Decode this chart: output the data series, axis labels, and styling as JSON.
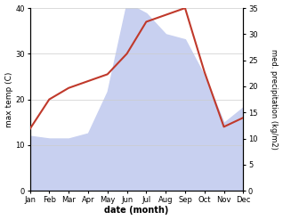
{
  "months": [
    "Jan",
    "Feb",
    "Mar",
    "Apr",
    "May",
    "Jun",
    "Jul",
    "Aug",
    "Sep",
    "Oct",
    "Nov",
    "Dec"
  ],
  "x": [
    0,
    1,
    2,
    3,
    4,
    5,
    6,
    7,
    8,
    9,
    10,
    11
  ],
  "temp": [
    13.5,
    20.0,
    22.5,
    24.0,
    25.5,
    30.0,
    37.0,
    38.5,
    40.0,
    26.0,
    14.0,
    16.0
  ],
  "precip": [
    10.5,
    10.0,
    10.0,
    11.0,
    19.0,
    36.0,
    34.0,
    30.0,
    29.0,
    22.0,
    13.0,
    16.0
  ],
  "temp_color": "#c0392b",
  "precip_fill_color": "#c8d0f0",
  "left_ylim": [
    0,
    40
  ],
  "right_ylim": [
    0,
    35
  ],
  "left_yticks": [
    0,
    10,
    20,
    30,
    40
  ],
  "right_yticks": [
    0,
    5,
    10,
    15,
    20,
    25,
    30,
    35
  ],
  "left_ylabel": "max temp (C)",
  "right_ylabel": "med. precipitation (kg/m2)",
  "xlabel": "date (month)",
  "temp_linewidth": 1.5,
  "figwidth": 3.18,
  "figheight": 2.47,
  "dpi": 100
}
